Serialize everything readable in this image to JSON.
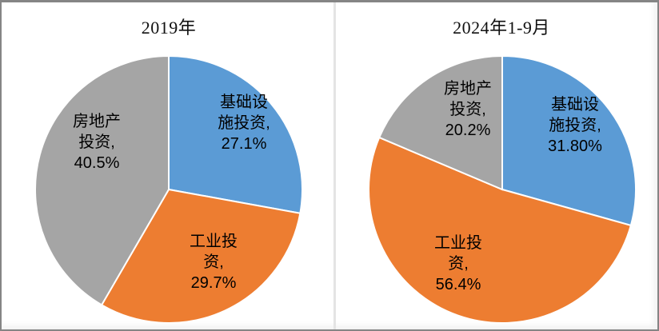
{
  "page": {
    "background": "#ffffff",
    "frame_border_color": "#858585",
    "divider_color": "#e4e4e4"
  },
  "chart_data": [
    {
      "type": "pie",
      "title": "2019年",
      "labels": [
        "基础设施投资",
        "工业投资",
        "房地产投资"
      ],
      "values": [
        27.1,
        29.7,
        40.5
      ],
      "colors": [
        "#5B9BD5",
        "#ED7D31",
        "#A5A5A5"
      ],
      "start_angle_deg": 0,
      "direction": "clockwise",
      "legend": "none",
      "data_labels": [
        "基础设\n施投资,\n27.1%",
        "工业投\n资,\n29.7%",
        "房地产\n投资,\n40.5%"
      ]
    },
    {
      "type": "pie",
      "title": "2024年1-9月",
      "labels": [
        "基础设施投资",
        "工业投资",
        "房地产投资"
      ],
      "values": [
        31.8,
        56.4,
        20.2
      ],
      "colors": [
        "#5B9BD5",
        "#ED7D31",
        "#A5A5A5"
      ],
      "start_angle_deg": 0,
      "direction": "clockwise",
      "legend": "none",
      "data_labels": [
        "基础设\n施投资,\n31.80%",
        "工业投\n资,\n56.4%",
        "房地产\n投资,\n20.2%"
      ]
    }
  ]
}
